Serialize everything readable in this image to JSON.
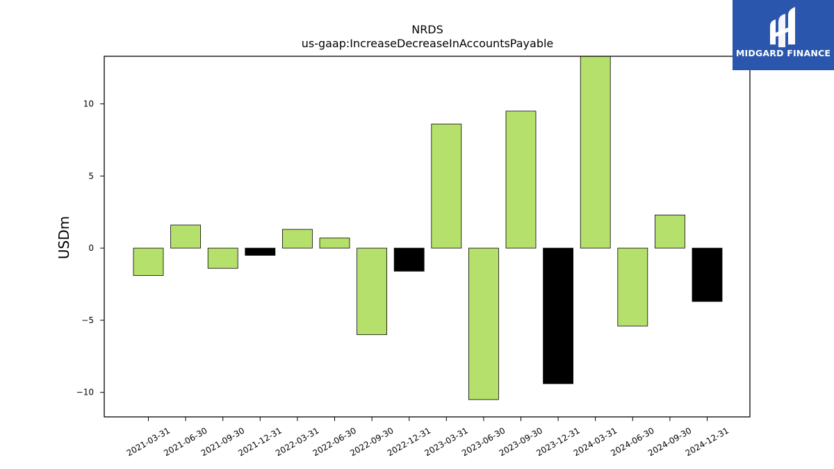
{
  "chart_data": {
    "type": "bar",
    "title": "NRDS",
    "subtitle": "us-gaap:IncreaseDecreaseInAccountsPayable",
    "xlabel": "",
    "ylabel": "USDm",
    "ylim": [
      -11.7,
      13.3
    ],
    "yticks": [
      -10,
      -5,
      0,
      5,
      10
    ],
    "ytick_labels": [
      "−10",
      "−5",
      "0",
      "5",
      "10"
    ],
    "grid": false,
    "categories": [
      "2021-03-31",
      "2021-06-30",
      "2021-09-30",
      "2021-12-31",
      "2022-03-31",
      "2022-06-30",
      "2022-09-30",
      "2022-12-31",
      "2023-03-31",
      "2023-06-30",
      "2023-09-30",
      "2023-12-31",
      "2024-03-31",
      "2024-06-30",
      "2024-09-30",
      "2024-12-31"
    ],
    "values": [
      -1.9,
      1.6,
      -1.4,
      -0.5,
      1.3,
      0.7,
      -6.0,
      -1.6,
      8.6,
      -10.5,
      9.5,
      -9.4,
      13.3,
      -5.4,
      2.3,
      -3.7
    ],
    "bar_colors": [
      "#b5e06b",
      "#b5e06b",
      "#b5e06b",
      "#000000",
      "#b5e06b",
      "#b5e06b",
      "#b5e06b",
      "#000000",
      "#b5e06b",
      "#b5e06b",
      "#b5e06b",
      "#000000",
      "#b5e06b",
      "#b5e06b",
      "#b5e06b",
      "#000000"
    ]
  },
  "logo": {
    "text": "MIDGARD FINANCE",
    "background": "#2a57ad"
  }
}
